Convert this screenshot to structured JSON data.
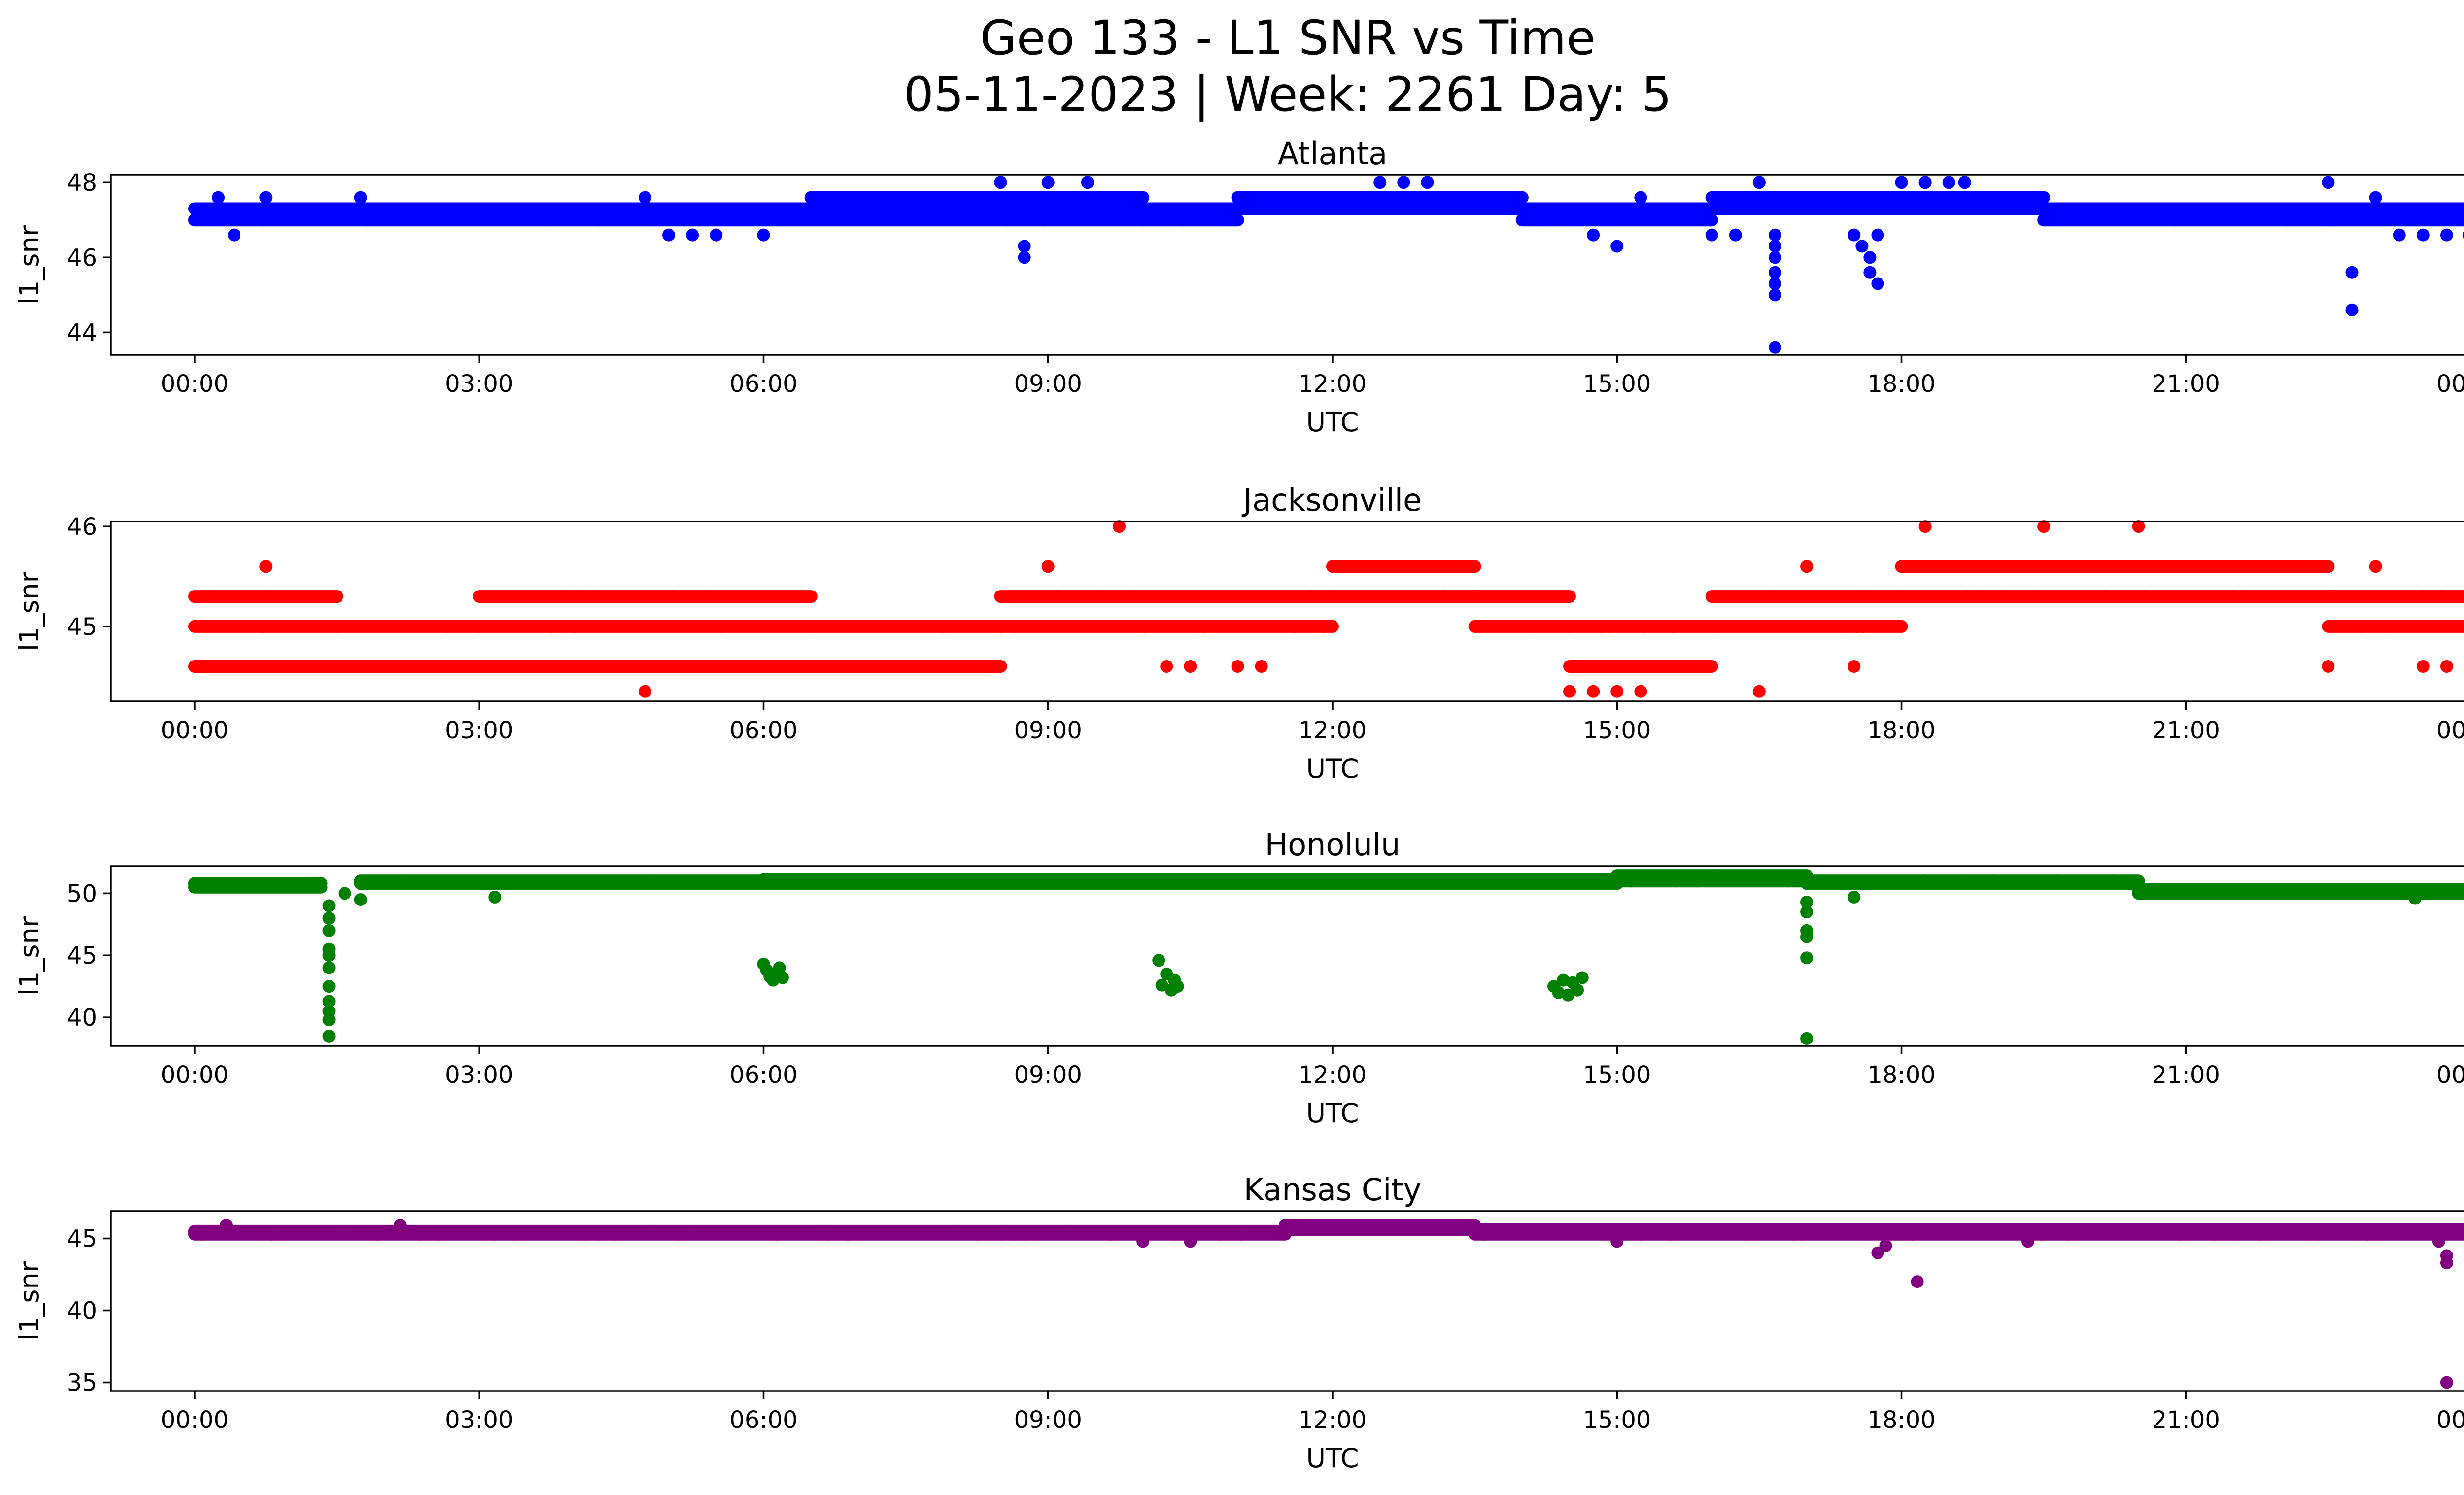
{
  "figure": {
    "title_line1": "Geo 133 - L1 SNR vs Time",
    "title_line2": "05-11-2023 | Week: 2261 Day: 5"
  },
  "chart_data": [
    {
      "type": "scatter",
      "title": "Atlanta",
      "xlabel": "UTC",
      "ylabel": "l1_snr",
      "color": "#0000ff",
      "xlim": [
        "2023-05-10T23:07",
        "2023-05-12T00:53"
      ],
      "ylim": [
        43.4,
        48.2
      ],
      "x_ticks": [
        "00:00",
        "03:00",
        "06:00",
        "09:00",
        "12:00",
        "15:00",
        "18:00",
        "21:00",
        "00:00"
      ],
      "y_ticks": [
        "44",
        "46",
        "48"
      ],
      "baseline": {
        "x_range": [
          "2023-05-11T00:00",
          "2023-05-12T00:00"
        ],
        "levels": [
          47.0,
          47.3
        ],
        "segments": [
          {
            "from": "00:00",
            "to": "06:30",
            "levels": [
              47.0,
              47.3
            ]
          },
          {
            "from": "06:30",
            "to": "10:00",
            "levels": [
              47.0,
              47.3,
              47.6
            ]
          },
          {
            "from": "10:00",
            "to": "11:00",
            "levels": [
              47.0,
              47.3
            ]
          },
          {
            "from": "11:00",
            "to": "14:00",
            "levels": [
              47.3,
              47.6
            ]
          },
          {
            "from": "14:00",
            "to": "16:00",
            "levels": [
              47.0,
              47.3
            ]
          },
          {
            "from": "16:00",
            "to": "19:30",
            "levels": [
              47.3,
              47.6
            ]
          },
          {
            "from": "19:30",
            "to": "24:00",
            "levels": [
              47.0,
              47.3
            ]
          }
        ]
      },
      "points": [
        [
          "00:15",
          47.6
        ],
        [
          "00:25",
          46.6
        ],
        [
          "00:45",
          47.6
        ],
        [
          "01:45",
          47.6
        ],
        [
          "04:45",
          47.6
        ],
        [
          "05:00",
          46.6
        ],
        [
          "05:15",
          46.6
        ],
        [
          "05:30",
          46.6
        ],
        [
          "06:00",
          46.6
        ],
        [
          "08:30",
          48.0
        ],
        [
          "08:45",
          46.3
        ],
        [
          "08:45",
          46.0
        ],
        [
          "09:00",
          48.0
        ],
        [
          "09:25",
          48.0
        ],
        [
          "12:30",
          48.0
        ],
        [
          "12:45",
          48.0
        ],
        [
          "13:00",
          48.0
        ],
        [
          "14:45",
          46.6
        ],
        [
          "15:00",
          46.3
        ],
        [
          "15:15",
          47.6
        ],
        [
          "16:00",
          46.6
        ],
        [
          "16:15",
          46.6
        ],
        [
          "16:25",
          47.6
        ],
        [
          "16:30",
          48.0
        ],
        [
          "16:40",
          46.6
        ],
        [
          "16:40",
          46.3
        ],
        [
          "16:40",
          46.0
        ],
        [
          "16:40",
          45.6
        ],
        [
          "16:40",
          45.3
        ],
        [
          "16:40",
          45.0
        ],
        [
          "16:40",
          43.6
        ],
        [
          "17:30",
          46.6
        ],
        [
          "17:35",
          46.3
        ],
        [
          "17:40",
          46.0
        ],
        [
          "17:40",
          45.6
        ],
        [
          "17:45",
          45.3
        ],
        [
          "17:45",
          46.6
        ],
        [
          "18:00",
          48.0
        ],
        [
          "18:15",
          48.0
        ],
        [
          "18:30",
          48.0
        ],
        [
          "18:40",
          48.0
        ],
        [
          "22:30",
          48.0
        ],
        [
          "22:45",
          45.6
        ],
        [
          "22:45",
          44.6
        ],
        [
          "23:00",
          47.6
        ],
        [
          "23:15",
          46.6
        ],
        [
          "23:30",
          46.6
        ],
        [
          "23:45",
          46.6
        ],
        [
          "23:59",
          46.6
        ]
      ]
    },
    {
      "type": "scatter",
      "title": "Jacksonville",
      "xlabel": "UTC",
      "ylabel": "l1_snr",
      "color": "#ff0000",
      "xlim": [
        "2023-05-10T23:07",
        "2023-05-12T00:53"
      ],
      "ylim": [
        44.25,
        46.05
      ],
      "x_ticks": [
        "00:00",
        "03:00",
        "06:00",
        "09:00",
        "12:00",
        "15:00",
        "18:00",
        "21:00",
        "00:00"
      ],
      "y_ticks": [
        "45",
        "46"
      ],
      "baseline": {
        "x_range": [
          "2023-05-11T00:00",
          "2023-05-12T00:00"
        ],
        "levels": [
          45.0
        ],
        "segments": [
          {
            "from": "00:00",
            "to": "01:30",
            "levels": [
              44.6,
              45.0,
              45.3
            ]
          },
          {
            "from": "01:30",
            "to": "03:00",
            "levels": [
              44.6,
              45.0
            ]
          },
          {
            "from": "03:00",
            "to": "06:30",
            "levels": [
              44.6,
              45.0,
              45.3
            ]
          },
          {
            "from": "06:30",
            "to": "08:30",
            "levels": [
              44.6,
              45.0
            ]
          },
          {
            "from": "08:30",
            "to": "12:00",
            "levels": [
              45.0,
              45.3
            ]
          },
          {
            "from": "12:00",
            "to": "13:30",
            "levels": [
              45.3,
              45.6
            ]
          },
          {
            "from": "13:30",
            "to": "14:30",
            "levels": [
              45.0,
              45.3
            ]
          },
          {
            "from": "14:30",
            "to": "16:00",
            "levels": [
              44.6,
              45.0
            ]
          },
          {
            "from": "16:00",
            "to": "18:00",
            "levels": [
              45.0,
              45.3
            ]
          },
          {
            "from": "18:00",
            "to": "22:30",
            "levels": [
              45.3,
              45.6
            ]
          },
          {
            "from": "22:30",
            "to": "24:00",
            "levels": [
              45.0,
              45.3
            ]
          }
        ]
      },
      "points": [
        [
          "00:45",
          45.6
        ],
        [
          "04:45",
          44.35
        ],
        [
          "09:00",
          45.6
        ],
        [
          "09:45",
          46.0
        ],
        [
          "10:15",
          44.6
        ],
        [
          "10:30",
          44.6
        ],
        [
          "11:00",
          44.6
        ],
        [
          "11:15",
          44.6
        ],
        [
          "14:30",
          44.35
        ],
        [
          "14:45",
          44.35
        ],
        [
          "15:00",
          44.35
        ],
        [
          "15:15",
          44.35
        ],
        [
          "16:30",
          44.35
        ],
        [
          "17:00",
          45.6
        ],
        [
          "17:30",
          44.6
        ],
        [
          "18:15",
          46.0
        ],
        [
          "19:30",
          46.0
        ],
        [
          "20:30",
          46.0
        ],
        [
          "22:30",
          44.6
        ],
        [
          "23:00",
          45.6
        ],
        [
          "23:30",
          44.6
        ],
        [
          "23:45",
          44.6
        ]
      ]
    },
    {
      "type": "scatter",
      "title": "Honolulu",
      "xlabel": "UTC",
      "ylabel": "l1_snr",
      "color": "#008000",
      "xlim": [
        "2023-05-10T23:07",
        "2023-05-12T00:53"
      ],
      "ylim": [
        37.7,
        52.2
      ],
      "x_ticks": [
        "00:00",
        "03:00",
        "06:00",
        "09:00",
        "12:00",
        "15:00",
        "18:00",
        "21:00",
        "00:00"
      ],
      "y_ticks": [
        "40",
        "45",
        "50"
      ],
      "baseline": {
        "x_range": [
          "2023-05-11T00:00",
          "2023-05-12T00:00"
        ],
        "levels": [
          50.5,
          50.8
        ],
        "segments": [
          {
            "from": "00:00",
            "to": "01:20",
            "levels": [
              50.5,
              50.8
            ]
          },
          {
            "from": "01:45",
            "to": "06:00",
            "levels": [
              50.8,
              51.0
            ]
          },
          {
            "from": "06:00",
            "to": "15:00",
            "levels": [
              50.8,
              51.1
            ]
          },
          {
            "from": "15:00",
            "to": "17:00",
            "levels": [
              51.0,
              51.4
            ]
          },
          {
            "from": "17:00",
            "to": "20:30",
            "levels": [
              50.8,
              51.0
            ]
          },
          {
            "from": "20:30",
            "to": "24:00",
            "levels": [
              50.0,
              50.3
            ]
          }
        ]
      },
      "points": [
        [
          "01:25",
          49.0
        ],
        [
          "01:25",
          48.0
        ],
        [
          "01:25",
          47.0
        ],
        [
          "01:25",
          45.5
        ],
        [
          "01:25",
          45.0
        ],
        [
          "01:25",
          44.0
        ],
        [
          "01:25",
          42.5
        ],
        [
          "01:25",
          41.3
        ],
        [
          "01:25",
          40.5
        ],
        [
          "01:25",
          39.8
        ],
        [
          "01:25",
          38.5
        ],
        [
          "01:35",
          50.0
        ],
        [
          "01:45",
          49.5
        ],
        [
          "03:10",
          49.7
        ],
        [
          "06:00",
          44.3
        ],
        [
          "06:02",
          43.8
        ],
        [
          "06:04",
          43.3
        ],
        [
          "06:06",
          43.0
        ],
        [
          "06:08",
          43.5
        ],
        [
          "06:10",
          44.0
        ],
        [
          "06:12",
          43.2
        ],
        [
          "10:10",
          44.6
        ],
        [
          "10:12",
          42.6
        ],
        [
          "10:15",
          43.5
        ],
        [
          "10:18",
          42.2
        ],
        [
          "10:20",
          43.0
        ],
        [
          "10:22",
          42.5
        ],
        [
          "14:20",
          42.5
        ],
        [
          "14:23",
          42.0
        ],
        [
          "14:26",
          43.0
        ],
        [
          "14:29",
          41.8
        ],
        [
          "14:32",
          42.8
        ],
        [
          "14:35",
          42.2
        ],
        [
          "14:38",
          43.2
        ],
        [
          "17:00",
          49.3
        ],
        [
          "17:00",
          48.5
        ],
        [
          "17:00",
          47.0
        ],
        [
          "17:00",
          46.5
        ],
        [
          "17:00",
          44.8
        ],
        [
          "17:00",
          38.3
        ],
        [
          "17:30",
          49.7
        ],
        [
          "23:25",
          49.6
        ]
      ]
    },
    {
      "type": "scatter",
      "title": "Kansas City",
      "xlabel": "UTC",
      "ylabel": "l1_snr",
      "color": "#800080",
      "xlim": [
        "2023-05-10T23:07",
        "2023-05-12T00:53"
      ],
      "ylim": [
        34.4,
        46.9
      ],
      "x_ticks": [
        "00:00",
        "03:00",
        "06:00",
        "09:00",
        "12:00",
        "15:00",
        "18:00",
        "21:00",
        "00:00"
      ],
      "y_ticks": [
        "35",
        "40",
        "45"
      ],
      "baseline": {
        "x_range": [
          "2023-05-11T00:00",
          "2023-05-12T00:00"
        ],
        "levels": [
          45.3,
          45.5
        ],
        "segments": [
          {
            "from": "00:00",
            "to": "11:30",
            "levels": [
              45.3,
              45.5
            ]
          },
          {
            "from": "11:30",
            "to": "13:30",
            "levels": [
              45.6,
              45.9
            ]
          },
          {
            "from": "13:30",
            "to": "24:00",
            "levels": [
              45.3,
              45.6
            ]
          }
        ]
      },
      "points": [
        [
          "00:20",
          45.9
        ],
        [
          "02:10",
          45.9
        ],
        [
          "10:00",
          44.8
        ],
        [
          "10:30",
          44.8
        ],
        [
          "15:00",
          44.8
        ],
        [
          "17:45",
          44.0
        ],
        [
          "17:50",
          44.5
        ],
        [
          "18:10",
          42.0
        ],
        [
          "19:20",
          44.8
        ],
        [
          "23:45",
          43.8
        ],
        [
          "23:45",
          43.3
        ],
        [
          "23:45",
          35.0
        ],
        [
          "23:40",
          44.8
        ]
      ]
    }
  ]
}
